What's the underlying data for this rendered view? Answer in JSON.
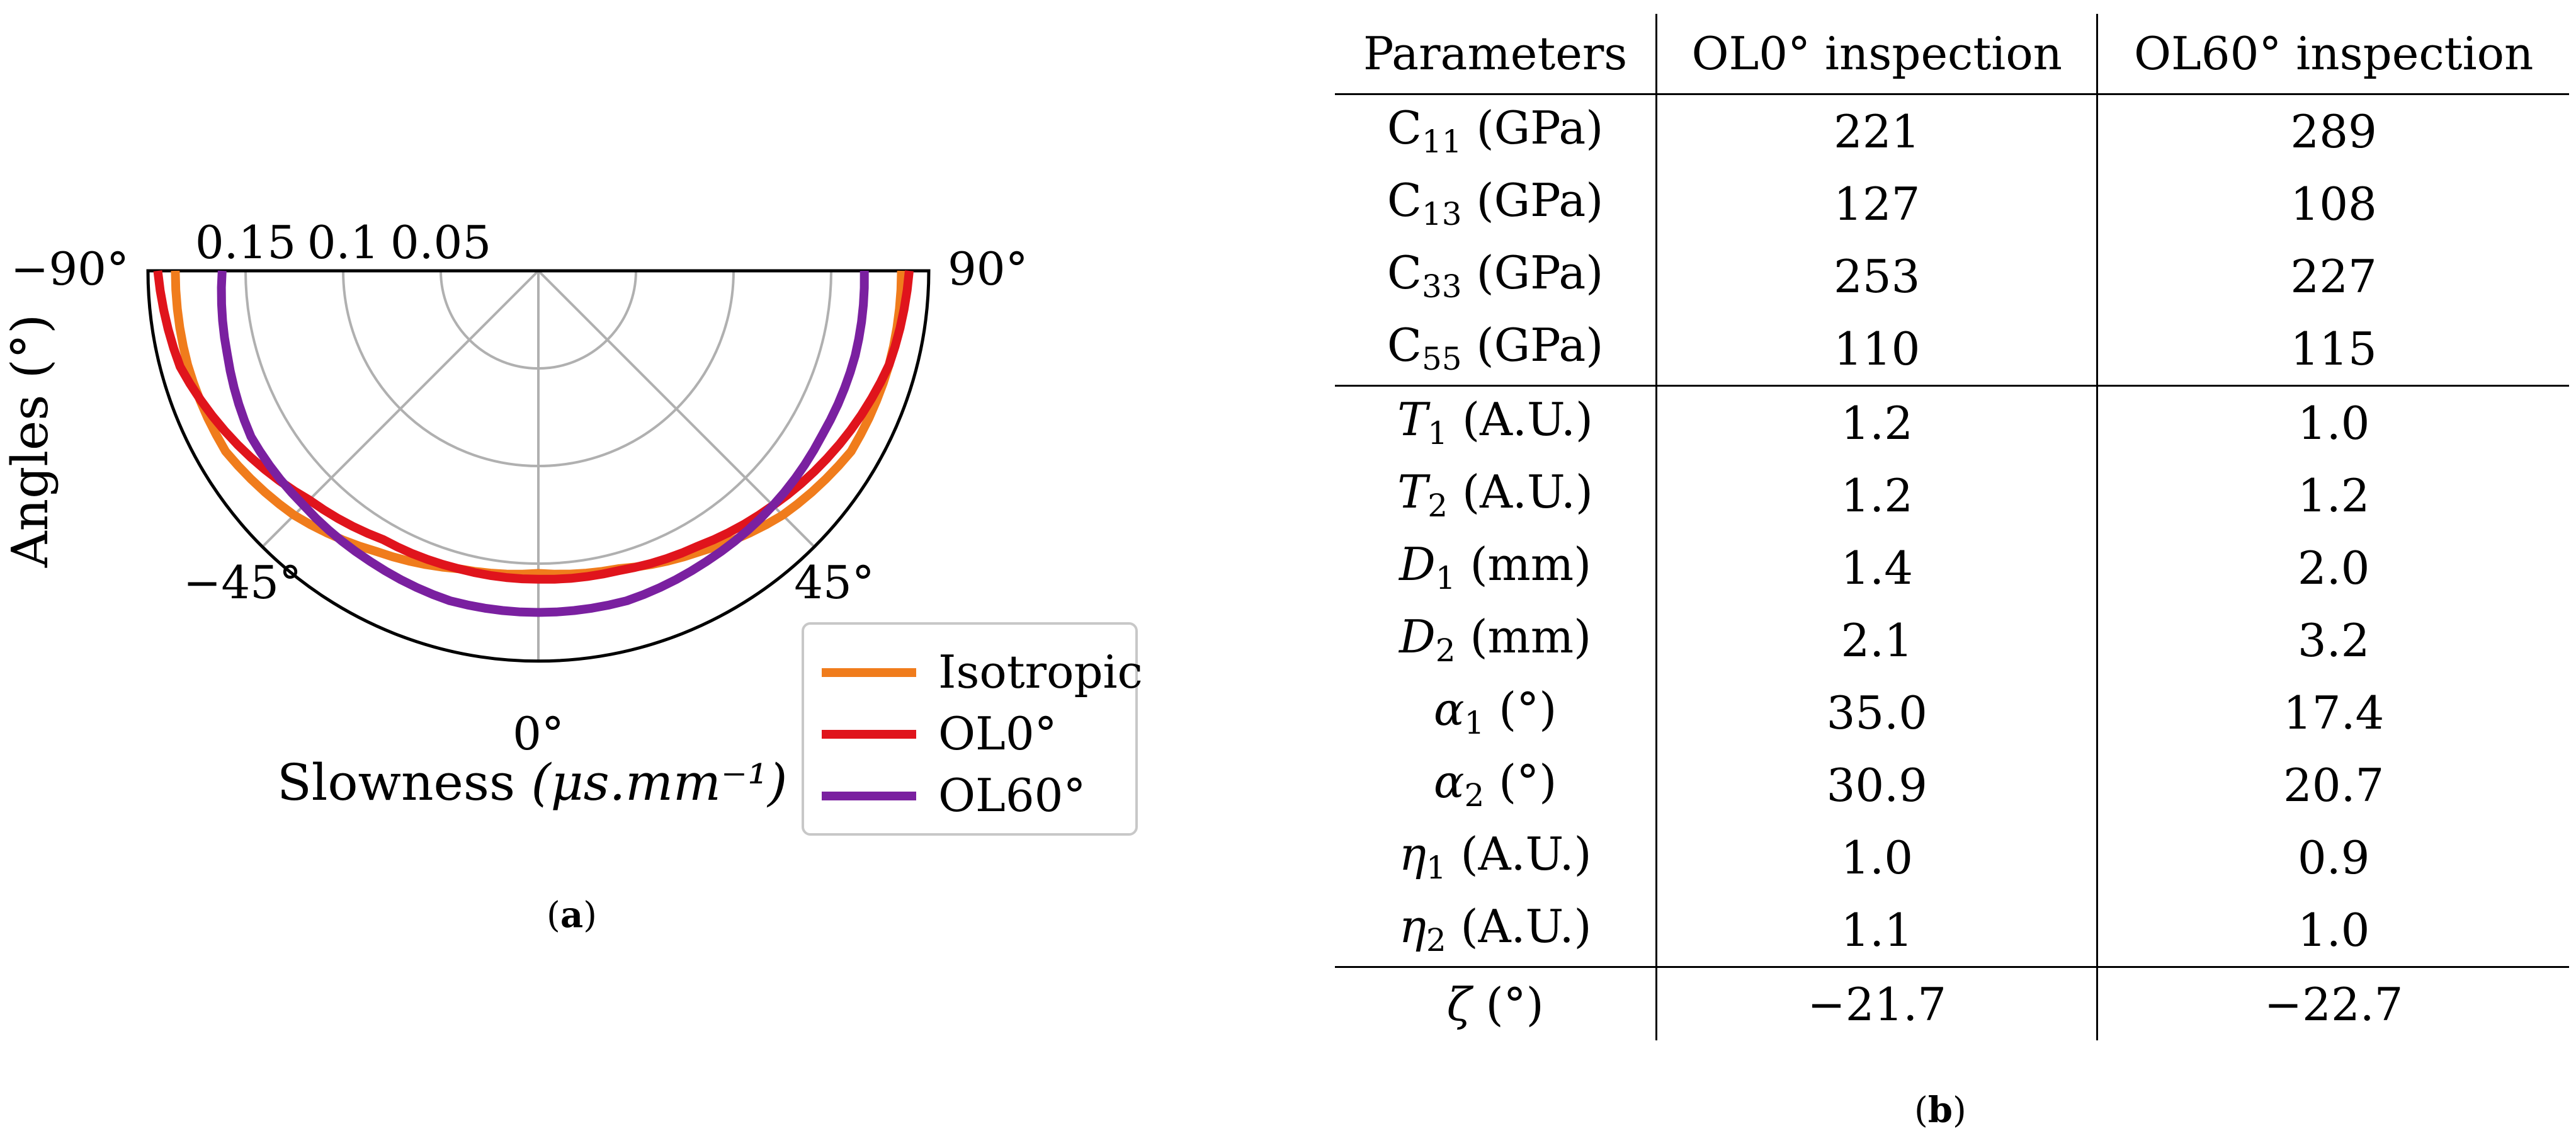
{
  "chart_data": {
    "type": "polar",
    "angle_range": [
      -90,
      90
    ],
    "angle_ticks": [
      "−90°",
      "−45°",
      "0°",
      "45°",
      "90°"
    ],
    "radial_ticks": [
      0.05,
      0.1,
      0.15
    ],
    "radial_tick_labels": [
      "0.05",
      "0.1",
      "0.15"
    ],
    "rmax": 0.2,
    "xlabel": "Slowness",
    "xlabel_unit": "(μs.mm⁻¹)",
    "ylabel": "Angles (°)",
    "legend_position": "bottom-right",
    "series": [
      {
        "name": "Isotropic",
        "color": "#f07c1c",
        "theta": [
          -90,
          -75,
          -60,
          -45,
          -30,
          -15,
          0,
          15,
          30,
          45,
          60,
          75,
          90
        ],
        "r": [
          0.186,
          0.186,
          0.185,
          0.177,
          0.166,
          0.158,
          0.155,
          0.158,
          0.166,
          0.177,
          0.185,
          0.186,
          0.186
        ]
      },
      {
        "name": "OL0°",
        "color": "#e0141c",
        "theta": [
          -90,
          -75,
          -60,
          -45,
          -30,
          -15,
          0,
          15,
          30,
          45,
          60,
          75,
          90
        ],
        "r": [
          0.195,
          0.19,
          0.178,
          0.166,
          0.159,
          0.158,
          0.158,
          0.159,
          0.163,
          0.17,
          0.178,
          0.186,
          0.19
        ]
      },
      {
        "name": "OL60°",
        "color": "#7a20a0",
        "theta": [
          -90,
          -75,
          -60,
          -45,
          -30,
          -15,
          0,
          15,
          30,
          45,
          60,
          75,
          90
        ],
        "r": [
          0.162,
          0.165,
          0.17,
          0.17,
          0.172,
          0.175,
          0.175,
          0.175,
          0.172,
          0.17,
          0.168,
          0.168,
          0.167
        ]
      }
    ]
  },
  "captions": {
    "a_letter": "a",
    "b_letter": "b",
    "open": "(",
    "close": ")"
  },
  "table": {
    "headers": [
      "Parameters",
      "OL0° inspection",
      "OL60° inspection"
    ],
    "rows": [
      {
        "sym": "C",
        "sub": "11",
        "unit": " (GPa)",
        "v1": "221",
        "v2": "289",
        "italic": false
      },
      {
        "sym": "C",
        "sub": "13",
        "unit": " (GPa)",
        "v1": "127",
        "v2": "108",
        "italic": false
      },
      {
        "sym": "C",
        "sub": "33",
        "unit": " (GPa)",
        "v1": "253",
        "v2": "227",
        "italic": false
      },
      {
        "sym": "C",
        "sub": "55",
        "unit": " (GPa)",
        "v1": "110",
        "v2": "115",
        "italic": false
      },
      {
        "sym": "T",
        "sub": "1",
        "unit": " (A.U.)",
        "v1": "1.2",
        "v2": "1.0",
        "italic": true
      },
      {
        "sym": "T",
        "sub": "2",
        "unit": " (A.U.)",
        "v1": "1.2",
        "v2": "1.2",
        "italic": true
      },
      {
        "sym": "D",
        "sub": "1",
        "unit": " (mm)",
        "v1": "1.4",
        "v2": "2.0",
        "italic": true
      },
      {
        "sym": "D",
        "sub": "2",
        "unit": " (mm)",
        "v1": "2.1",
        "v2": "3.2",
        "italic": true
      },
      {
        "sym": "α",
        "sub": "1",
        "unit": " (°)",
        "v1": "35.0",
        "v2": "17.4",
        "italic": true
      },
      {
        "sym": "α",
        "sub": "2",
        "unit": " (°)",
        "v1": "30.9",
        "v2": "20.7",
        "italic": true
      },
      {
        "sym": "η",
        "sub": "1",
        "unit": " (A.U.)",
        "v1": "1.0",
        "v2": "0.9",
        "italic": true
      },
      {
        "sym": "η",
        "sub": "2",
        "unit": " (A.U.)",
        "v1": "1.1",
        "v2": "1.0",
        "italic": true
      },
      {
        "sym": "ζ",
        "sub": "",
        "unit": " (°)",
        "v1": "−21.7",
        "v2": "−22.7",
        "italic": true
      }
    ]
  }
}
